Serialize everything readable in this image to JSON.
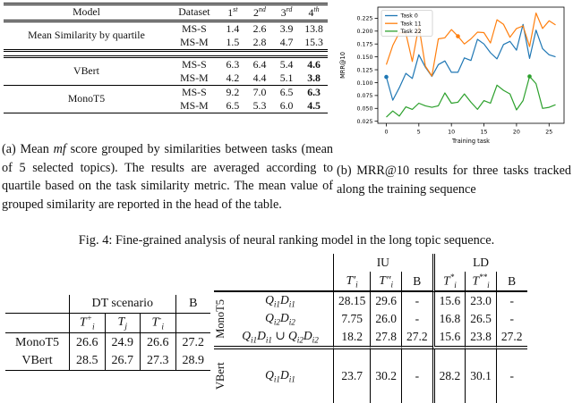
{
  "page": {
    "background": "#ffffff",
    "text_color": "#111111"
  },
  "fig_caption": "Fig. 4: Fine-grained analysis of neural ranking model in the long topic sequence.",
  "caption_a": {
    "prefix": "(a) Mean ",
    "math": "mf",
    "rest": " score grouped by similarities between tasks (mean of 5 selected topics). The results are averaged according to quartile based on the task similarity metric. The mean value of grouped similarity are reported in the head of the table."
  },
  "caption_b": "(b) MRR@10 results for three tasks tracked along the training sequence",
  "similarity_table": {
    "headers": [
      "Model",
      "Dataset",
      "1^{st}",
      "2^{nd}",
      "3^{rd}",
      "4^{th}"
    ],
    "groups": [
      {
        "model": "Mean Similarity by quartile",
        "bold_last": false,
        "rows": [
          {
            "dataset": "MS-S",
            "values": [
              "1.4",
              "2.6",
              "3.9",
              "13.8"
            ]
          },
          {
            "dataset": "MS-M",
            "values": [
              "1.5",
              "2.8",
              "4.7",
              "15.3"
            ]
          }
        ]
      },
      {
        "model": "VBert",
        "bold_last": true,
        "rows": [
          {
            "dataset": "MS-S",
            "values": [
              "6.3",
              "6.4",
              "5.4",
              "4.6"
            ]
          },
          {
            "dataset": "MS-M",
            "values": [
              "4.2",
              "4.4",
              "5.1",
              "3.8"
            ]
          }
        ]
      },
      {
        "model": "MonoT5",
        "bold_last": true,
        "rows": [
          {
            "dataset": "MS-S",
            "values": [
              "9.2",
              "7.0",
              "6.5",
              "6.3"
            ]
          },
          {
            "dataset": "MS-M",
            "values": [
              "6.5",
              "5.3",
              "6.0",
              "4.5"
            ]
          }
        ]
      }
    ]
  },
  "chart_data": {
    "type": "line",
    "title": "",
    "xlabel": "Training task",
    "ylabel": "MRR@10",
    "xlim": [
      -1.3,
      27.3
    ],
    "ylim": [
      0.021,
      0.2465
    ],
    "xticks": [
      0,
      5,
      10,
      15,
      20,
      25
    ],
    "yticks": [
      0.025,
      0.05,
      0.075,
      0.1,
      0.125,
      0.15,
      0.175,
      0.2,
      0.225
    ],
    "grid": false,
    "legend_position": "upper left",
    "x": [
      0,
      1,
      2,
      3,
      4,
      5,
      6,
      7,
      8,
      9,
      10,
      11,
      12,
      13,
      14,
      15,
      16,
      17,
      18,
      19,
      20,
      21,
      22,
      23,
      24,
      25,
      26
    ],
    "series": [
      {
        "name": "Task 0",
        "color": "#1f77b4",
        "marker_at": 0,
        "values": [
          0.111,
          0.066,
          0.09,
          0.118,
          0.108,
          0.154,
          0.13,
          0.112,
          0.135,
          0.142,
          0.12,
          0.12,
          0.148,
          0.143,
          0.184,
          0.175,
          0.158,
          0.146,
          0.174,
          0.18,
          0.163,
          0.213,
          0.147,
          0.202,
          0.166,
          0.154,
          0.15
        ]
      },
      {
        "name": "Task 11",
        "color": "#ff7f0e",
        "marker_at": 11,
        "values": [
          0.135,
          0.172,
          0.197,
          0.196,
          0.141,
          0.21,
          0.132,
          0.113,
          0.185,
          0.187,
          0.203,
          0.19,
          0.175,
          0.185,
          0.198,
          0.197,
          0.177,
          0.222,
          0.213,
          0.188,
          0.205,
          0.21,
          0.17,
          0.235,
          0.205,
          0.22,
          0.212
        ]
      },
      {
        "name": "Task 22",
        "color": "#2ca02c",
        "marker_at": 22,
        "values": [
          0.033,
          0.045,
          0.035,
          0.053,
          0.048,
          0.06,
          0.055,
          0.052,
          0.055,
          0.08,
          0.06,
          0.062,
          0.078,
          0.062,
          0.048,
          0.065,
          0.06,
          0.095,
          0.085,
          0.078,
          0.047,
          0.065,
          0.112,
          0.098,
          0.05,
          0.052,
          0.057
        ]
      }
    ]
  },
  "dt_table": {
    "col_group_header": "DT scenario",
    "b_header": "B",
    "math_headers": [
      "T^{+}_{i}",
      "T_{j}",
      "T^{-}_{i}"
    ],
    "rows": [
      {
        "label": "MonoT5",
        "values": [
          "26.6",
          "24.9",
          "26.6",
          "27.2"
        ]
      },
      {
        "label": "VBert",
        "values": [
          "28.5",
          "26.7",
          "27.3",
          "28.9"
        ]
      }
    ]
  },
  "iuld_table": {
    "group_headers": [
      "IU",
      "LD"
    ],
    "math_headers": [
      "T′_{i}",
      "T″_{i}",
      "B",
      "T^{*}_{i}",
      "T^{**}_{i}",
      "B"
    ],
    "row_group_label": "MonoT5",
    "next_group_label": "VBert",
    "rows": [
      {
        "label": "Q_{i1}D_{i1}",
        "values": [
          "28.15",
          "29.6",
          "-",
          "15.6",
          "23.0",
          "-"
        ]
      },
      {
        "label": "Q_{i2}D_{i2}",
        "values": [
          "7.75",
          "26.0",
          "-",
          "16.8",
          "26.5",
          "-"
        ]
      },
      {
        "label": "Q_{i1}D_{i1} ∪ Q_{i2}D_{i2}",
        "values": [
          "18.2",
          "27.8",
          "27.2",
          "15.6",
          "23.8",
          "27.2"
        ]
      }
    ],
    "partial_row": {
      "label": "Q_{i1}D_{i1}",
      "values": [
        "23.7",
        "30.2",
        "-",
        "28.2",
        "30.1",
        "-"
      ]
    }
  }
}
